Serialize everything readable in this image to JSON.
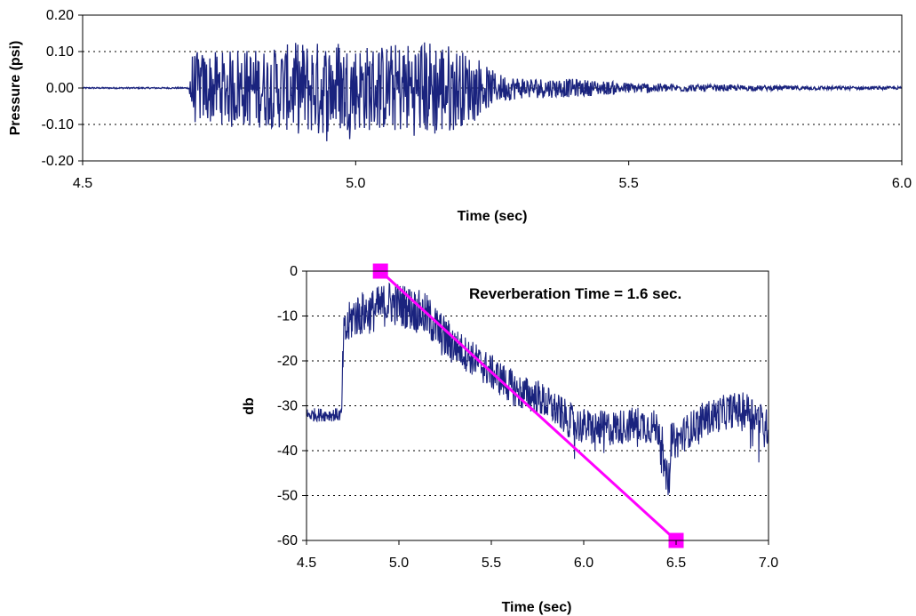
{
  "chart_data": [
    {
      "type": "line",
      "title": "",
      "xlabel": "Time (sec)",
      "ylabel": "Pressure (psi)",
      "xlim": [
        4.5,
        6.0
      ],
      "ylim": [
        -0.2,
        0.2
      ],
      "x_ticks": [
        "4.5",
        "5.0",
        "5.5",
        "6.0"
      ],
      "y_ticks": [
        "0.20",
        "0.10",
        "0.00",
        "-0.10",
        "-0.20"
      ],
      "grid": "horizontal dashed",
      "colors": {
        "signal": "#1a237e"
      },
      "series": [
        {
          "envelope": [
            [
              4.5,
              0.005
            ],
            [
              4.69,
              0.005
            ],
            [
              4.7,
              0.1
            ],
            [
              4.75,
              0.1
            ],
            [
              4.8,
              0.11
            ],
            [
              4.85,
              0.11
            ],
            [
              4.9,
              0.13
            ],
            [
              4.95,
              0.13
            ],
            [
              5.0,
              0.12
            ],
            [
              5.05,
              0.12
            ],
            [
              5.1,
              0.13
            ],
            [
              5.15,
              0.14
            ],
            [
              5.2,
              0.1
            ],
            [
              5.23,
              0.07
            ],
            [
              5.26,
              0.04
            ],
            [
              5.3,
              0.03
            ],
            [
              5.4,
              0.025
            ],
            [
              5.5,
              0.015
            ],
            [
              5.6,
              0.01
            ],
            [
              5.7,
              0.008
            ],
            [
              5.8,
              0.006
            ],
            [
              5.9,
              0.005
            ],
            [
              6.0,
              0.004
            ]
          ]
        }
      ]
    },
    {
      "type": "line",
      "title": "",
      "xlabel": "Time (sec)",
      "ylabel": "db",
      "xlim": [
        4.5,
        7.0
      ],
      "ylim": [
        -60,
        0
      ],
      "x_ticks": [
        "4.5",
        "5.0",
        "5.5",
        "6.0",
        "6.5",
        "7.0"
      ],
      "y_ticks": [
        "0",
        "-10",
        "-20",
        "-30",
        "-40",
        "-50",
        "-60"
      ],
      "grid": "horizontal dashed",
      "annotation": "Reverberation Time = 1.6 sec.",
      "colors": {
        "signal": "#1a237e",
        "fit": "#ff00ff"
      },
      "series": [
        {
          "trend": [
            [
              4.5,
              -32
            ],
            [
              4.69,
              -32
            ],
            [
              4.7,
              -15
            ],
            [
              4.75,
              -10
            ],
            [
              4.85,
              -9
            ],
            [
              4.95,
              -7
            ],
            [
              5.05,
              -8
            ],
            [
              5.15,
              -10
            ],
            [
              5.25,
              -15
            ],
            [
              5.35,
              -18
            ],
            [
              5.45,
              -21
            ],
            [
              5.55,
              -24
            ],
            [
              5.65,
              -27
            ],
            [
              5.75,
              -28
            ],
            [
              5.85,
              -31
            ],
            [
              5.95,
              -34
            ],
            [
              6.05,
              -35
            ],
            [
              6.15,
              -35
            ],
            [
              6.3,
              -34
            ],
            [
              6.4,
              -35
            ],
            [
              6.45,
              -37
            ],
            [
              6.5,
              -38
            ],
            [
              6.55,
              -36
            ],
            [
              6.65,
              -33
            ],
            [
              6.8,
              -31
            ],
            [
              6.9,
              -31
            ],
            [
              7.0,
              -35
            ]
          ]
        },
        {
          "points": [
            [
              4.9,
              0
            ],
            [
              6.5,
              -60
            ]
          ]
        }
      ]
    }
  ]
}
